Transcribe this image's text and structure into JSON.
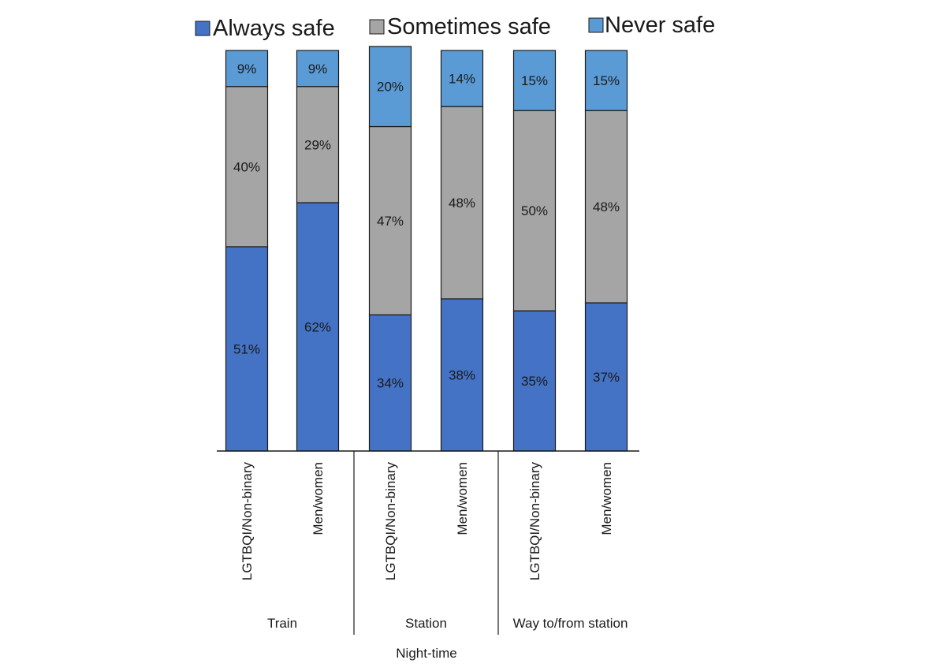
{
  "chart_data": {
    "type": "bar",
    "stacked": true,
    "normalized": true,
    "legend": {
      "position": "top",
      "entries": [
        "Always safe",
        "Sometimes safe",
        "Never safe"
      ]
    },
    "categories": [
      "LGTBQI/Non-binary",
      "Men/women",
      "LGTBQI/Non-binary",
      "Men/women",
      "LGTBQI/Non-binary",
      "Men/women"
    ],
    "groups": [
      {
        "label": "Train",
        "categories": [
          0,
          1
        ]
      },
      {
        "label": "Station",
        "categories": [
          2,
          3
        ]
      },
      {
        "label": "Way to/from station",
        "categories": [
          4,
          5
        ]
      }
    ],
    "xlabel": "Night-time",
    "ylabel": "",
    "ylim": [
      0,
      100
    ],
    "grid": false,
    "value_format": "percent",
    "series": [
      {
        "name": "Always safe",
        "color": "#4472c4",
        "values": [
          51,
          62,
          34,
          38,
          35,
          37
        ]
      },
      {
        "name": "Sometimes safe",
        "color": "#a5a5a5",
        "values": [
          40,
          29,
          47,
          48,
          50,
          48
        ]
      },
      {
        "name": "Never safe",
        "color": "#5b9bd5",
        "values": [
          9,
          9,
          20,
          14,
          15,
          15
        ]
      }
    ]
  }
}
